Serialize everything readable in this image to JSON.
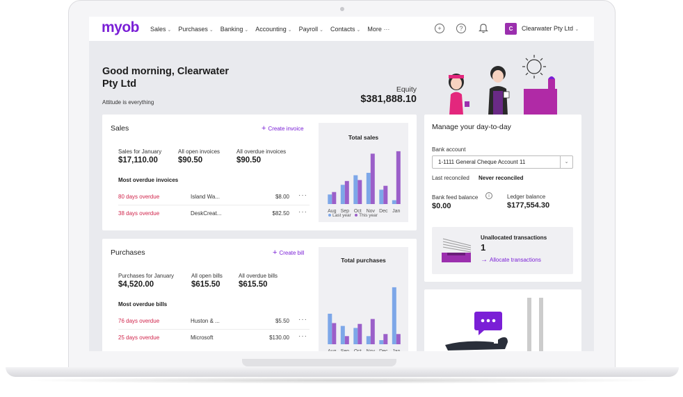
{
  "nav": {
    "logo": "myob",
    "menu": [
      {
        "label": "Sales",
        "has_chevron": true
      },
      {
        "label": "Purchases",
        "has_chevron": true
      },
      {
        "label": "Banking",
        "has_chevron": true
      },
      {
        "label": "Accounting",
        "has_chevron": true
      },
      {
        "label": "Payroll",
        "has_chevron": true
      },
      {
        "label": "Contacts",
        "has_chevron": true
      }
    ],
    "more_label": "More",
    "company_initial": "C",
    "company_name": "Clearwater Pty Ltd",
    "icons": [
      "add-icon",
      "help-icon",
      "bell-icon"
    ]
  },
  "header": {
    "greeting": "Good morning, Clearwater Pty Ltd",
    "tagline": "Attitude is everything",
    "equity_label": "Equity",
    "equity_value": "$381,888.10"
  },
  "sales": {
    "title": "Sales",
    "link": "Create invoice",
    "stats": [
      {
        "label": "Sales for January",
        "value": "$17,110.00"
      },
      {
        "label": "All open invoices",
        "value": "$90.50"
      },
      {
        "label": "All overdue invoices",
        "value": "$90.50"
      }
    ],
    "overdue_heading": "Most overdue invoices",
    "rows": [
      {
        "status": "80 days overdue",
        "customer": "Island Wa...",
        "amount": "$8.00"
      },
      {
        "status": "38 days overdue",
        "customer": "DeskCreat...",
        "amount": "$82.50"
      }
    ]
  },
  "purchases": {
    "title": "Purchases",
    "link": "Create bill",
    "stats": [
      {
        "label": "Purchases for January",
        "value": "$4,520.00"
      },
      {
        "label": "All open bills",
        "value": "$615.50"
      },
      {
        "label": "All overdue bills",
        "value": "$615.50"
      }
    ],
    "overdue_heading": "Most overdue bills",
    "rows": [
      {
        "status": "76 days overdue",
        "customer": "Huston & ...",
        "amount": "$5.50"
      },
      {
        "status": "25 days overdue",
        "customer": "Microsoft",
        "amount": "$130.00"
      }
    ]
  },
  "manage": {
    "title": "Manage your day-to-day",
    "bank_account_label": "Bank account",
    "bank_account_value": "1-1111 General Cheque Account 11",
    "last_reconciled_label": "Last reconciled",
    "last_reconciled_value": "Never reconciled",
    "bank_feed_label": "Bank feed balance",
    "bank_feed_value": "$0.00",
    "ledger_label": "Ledger balance",
    "ledger_value": "$177,554.30",
    "unallocated_label": "Unallocated transactions",
    "unallocated_count": "1",
    "allocate_link": "Allocate transactions"
  },
  "colors": {
    "brand": "#7a1fd6",
    "overdue": "#d0234a",
    "last_year": "#7da7e8",
    "this_year": "#9b5fc9"
  },
  "chart_data": [
    {
      "type": "bar",
      "title": "Total sales",
      "categories": [
        "Aug",
        "Sep",
        "Oct",
        "Nov",
        "Dec",
        "Jan"
      ],
      "series": [
        {
          "name": "Last year",
          "values": [
            2,
            4,
            6,
            6.5,
            3,
            0.8
          ]
        },
        {
          "name": "This year",
          "values": [
            2.5,
            4.8,
            5,
            10.5,
            3.8,
            11
          ]
        }
      ],
      "ylim": [
        0,
        12
      ],
      "legend": "bottom"
    },
    {
      "type": "bar",
      "title": "Total purchases",
      "categories": [
        "Aug",
        "Sep",
        "Oct",
        "Nov",
        "Dec",
        "Jan"
      ],
      "series": [
        {
          "name": "Last year",
          "values": [
            7.5,
            4.5,
            4,
            2,
            1,
            14
          ]
        },
        {
          "name": "This year",
          "values": [
            5.2,
            2,
            5,
            6.2,
            2.5,
            2.5
          ]
        }
      ],
      "ylim": [
        0,
        15
      ],
      "legend": "none"
    }
  ]
}
